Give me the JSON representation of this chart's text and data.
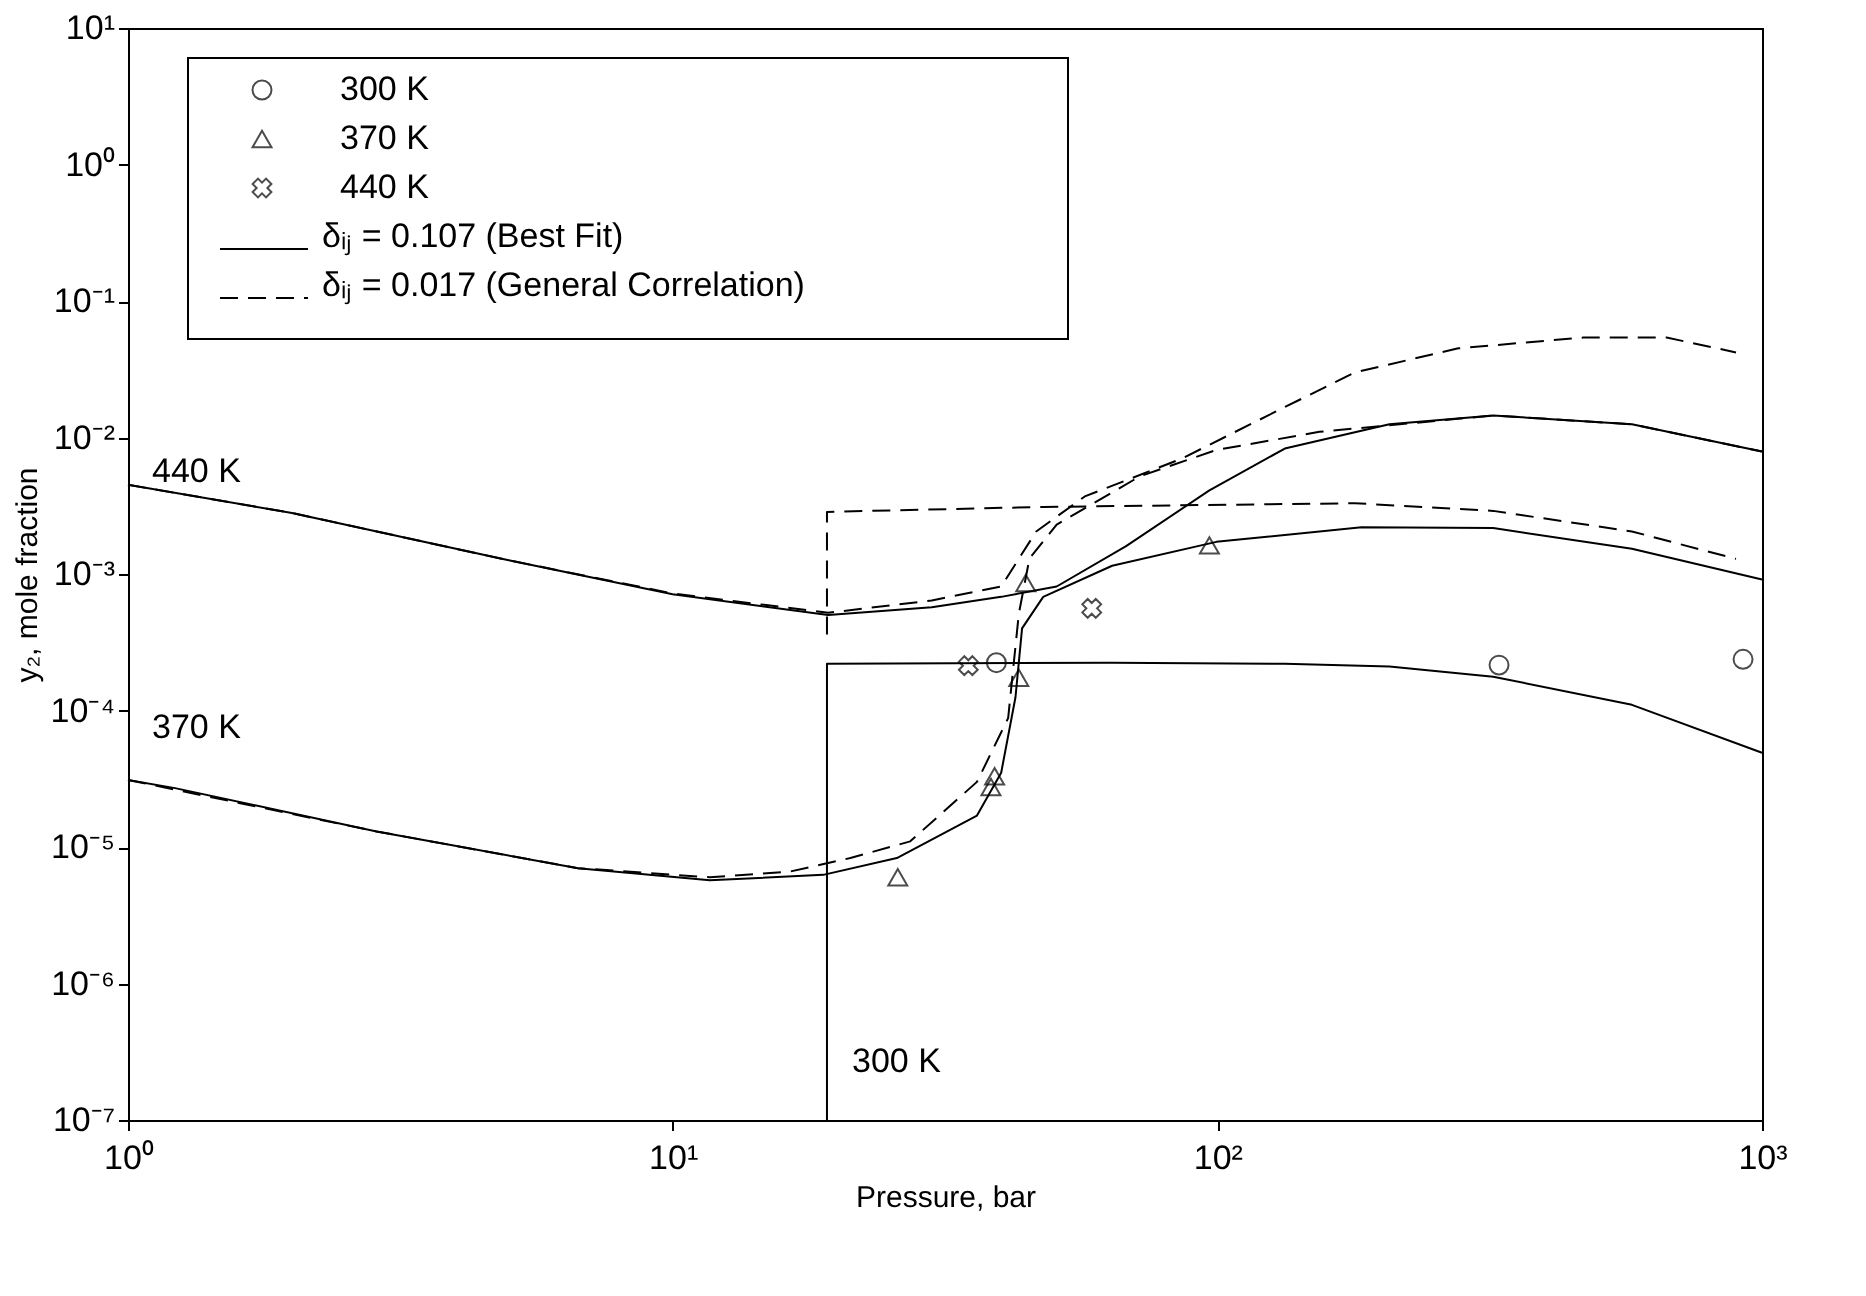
{
  "chart_data": {
    "type": "line",
    "xlabel": "Pressure, bar",
    "ylabel": "y₂, mole fraction",
    "log": "xy",
    "grid": false,
    "legend": "top left",
    "xlim": [
      1,
      1000
    ],
    "ylim": [
      1e-07,
      10
    ],
    "xticks": [
      {
        "value": 1,
        "label": "10⁰"
      },
      {
        "value": 10,
        "label": "10¹"
      },
      {
        "value": 100,
        "label": "10²"
      },
      {
        "value": 1000,
        "label": "10³"
      }
    ],
    "yticks": [
      {
        "value": 1e-07,
        "label": "10⁻⁷"
      },
      {
        "value": 1e-06,
        "label": "10⁻⁶"
      },
      {
        "value": 1e-05,
        "label": "10⁻⁵"
      },
      {
        "value": 0.0001,
        "label": "10⁻⁴"
      },
      {
        "value": 0.001,
        "label": "10⁻³"
      },
      {
        "value": 0.01,
        "label": "10⁻²"
      },
      {
        "value": 0.1,
        "label": "10⁻¹"
      },
      {
        "value": 1,
        "label": "10⁰"
      },
      {
        "value": 10,
        "label": "10¹"
      }
    ],
    "annotations": [
      "440 K",
      "370 K",
      "300 K"
    ],
    "series": [
      {
        "type": "scatter",
        "name": "300 K",
        "marker": "circle",
        "color": "#000000",
        "x": [
          39.3,
          329,
          923
        ],
        "values": [
          0.000224,
          0.000215,
          0.000237
        ]
      },
      {
        "type": "scatter",
        "name": "370 K",
        "marker": "triangle",
        "color": "#000000",
        "x": [
          25.9,
          38.4,
          39,
          43.2,
          44.5,
          96.7
        ],
        "values": [
          6e-06,
          2.75e-05,
          3.3e-05,
          0.000174,
          0.00086,
          0.00162
        ]
      },
      {
        "type": "scatter",
        "name": "440 K",
        "marker": "cross",
        "color": "#000000",
        "x": [
          34.9,
          58.8
        ],
        "values": [
          0.000213,
          0.00056
        ]
      },
      {
        "type": "line",
        "name": "δᵢⱼ = 0.107 (Best Fit)",
        "line_style": "solid",
        "color": "#000000",
        "x": [
          1,
          2,
          5,
          10,
          19.3,
          29.9,
          40.1,
          50.7,
          68,
          96.7,
          133,
          207,
          321,
          577,
          1000
        ],
        "values": [
          0.0045,
          0.0028,
          0.00126,
          0.00071,
          0.0005,
          0.00057,
          0.00068,
          0.00081,
          0.0016,
          0.0041,
          0.0083,
          0.0125,
          0.0145,
          0.0125,
          0.0079
        ]
      },
      {
        "type": "line",
        "line_style": "solid",
        "color": "#000000",
        "x": [
          1,
          1.22,
          2.86,
          6.7,
          11.7,
          18.9,
          25.8,
          36.2,
          40.1,
          42.6,
          43.8,
          47.9,
          64.1,
          99.6,
          184,
          321,
          577,
          1000
        ],
        "values": [
          3.1e-05,
          2.7e-05,
          1.3e-05,
          7e-06,
          5.7e-06,
          6.25e-06,
          8.3e-06,
          1.7e-05,
          3.5e-05,
          0.000125,
          0.0004,
          0.00068,
          0.00115,
          0.00172,
          0.0022,
          0.00217,
          0.00153,
          0.00091
        ]
      },
      {
        "type": "line",
        "line_style": "solid",
        "color": "#000000",
        "x": [
          19.2,
          19.2,
          64,
          133,
          207,
          321,
          577,
          1000
        ],
        "values": [
          1e-07,
          0.00022,
          0.000224,
          0.00022,
          0.00021,
          0.000177,
          0.00011,
          4.9e-05
        ]
      },
      {
        "type": "line",
        "name": "δᵢⱼ = 0.017 (General Correlation)",
        "line_style": "dashed",
        "color": "#000000",
        "x": [
          1,
          2,
          5,
          10,
          19.3,
          29.9,
          40.1,
          46.5,
          57.1,
          86,
          133,
          179,
          277,
          470,
          668,
          896
        ],
        "values": [
          0.0045,
          0.0028,
          0.00126,
          0.00072,
          0.00052,
          0.00064,
          0.00081,
          0.00205,
          0.0037,
          0.007,
          0.0167,
          0.03,
          0.045,
          0.054,
          0.054,
          0.042
        ]
      },
      {
        "type": "line",
        "line_style": "dashed",
        "color": "#000000",
        "x": [
          1,
          2.86,
          6.7,
          11.7,
          16.4,
          21.2,
          27.3,
          36.2,
          41.3,
          43.2,
          45.2,
          50.7,
          72.1,
          99.6,
          154,
          321,
          577,
          1000
        ],
        "values": [
          3.1e-05,
          1.3e-05,
          7e-06,
          6e-06,
          6.6e-06,
          8.3e-06,
          1.1e-05,
          3e-05,
          8.8e-05,
          0.00051,
          0.0013,
          0.0023,
          0.0052,
          0.0081,
          0.011,
          0.0145,
          0.0125,
          0.0079
        ]
      },
      {
        "type": "line",
        "line_style": "dashed",
        "color": "#000000",
        "x": [
          19.2,
          19.2,
          47.9,
          179,
          321,
          577,
          896
        ],
        "values": [
          0.00036,
          0.00285,
          0.0031,
          0.0033,
          0.0029,
          0.00205,
          0.00129
        ]
      }
    ]
  }
}
